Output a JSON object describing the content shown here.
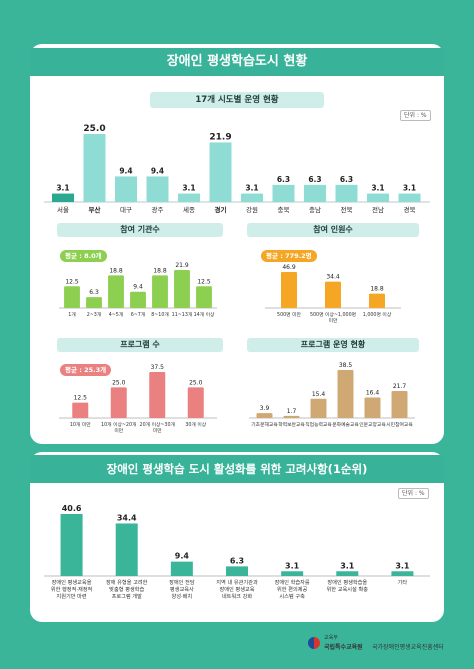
{
  "header": {
    "title": "장애인 평생학습도시 현황"
  },
  "unit_label": "단위 : %",
  "section1": {
    "title": "17개 시도별 운영 현황",
    "chart_data": {
      "type": "bar",
      "categories": [
        "서울",
        "부산",
        "대구",
        "광주",
        "세종",
        "경기",
        "강원",
        "충북",
        "충남",
        "전북",
        "전남",
        "경북"
      ],
      "values": [
        3.1,
        25.0,
        9.4,
        9.4,
        3.1,
        21.9,
        3.1,
        6.3,
        6.3,
        6.3,
        3.1,
        3.1
      ],
      "value_labels": [
        "3.1",
        "25.0",
        "9.4",
        "9.4",
        "3.1",
        "21.9",
        "3.1",
        "6.3",
        "6.3",
        "6.3",
        "3.1",
        "3.1"
      ],
      "highlight": [
        "부산",
        "경기"
      ],
      "colors": {
        "bar": "#8fdcd4",
        "highlight": "#8fdcd4",
        "first": "#2aa890"
      }
    }
  },
  "institutions": {
    "title": "참여 기관수",
    "avg_label": "평균 : 8.0개",
    "chart_data": {
      "type": "bar",
      "categories": [
        "1개",
        "2~3개",
        "4~5개",
        "6~7개",
        "8~10개",
        "11~13개",
        "14개 이상"
      ],
      "values": [
        12.5,
        6.3,
        18.8,
        9.4,
        18.8,
        21.9,
        12.5
      ],
      "value_labels": [
        "12.5",
        "6.3",
        "18.8",
        "9.4",
        "18.8",
        "21.9",
        "12.5"
      ],
      "colors": {
        "bar": "#8dcf50"
      }
    }
  },
  "participants": {
    "title": "참여 인원수",
    "avg_label": "평균 : 779.2명",
    "chart_data": {
      "type": "bar",
      "categories": [
        "500명 미만",
        "500명 이상~1,000명 미만",
        "1,000명 이상"
      ],
      "values": [
        46.9,
        34.4,
        18.8
      ],
      "value_labels": [
        "46.9",
        "34.4",
        "18.8"
      ],
      "colors": {
        "bar": "#f4a624"
      }
    }
  },
  "programs": {
    "title": "프로그램 수",
    "avg_label": "평균 : 25.3개",
    "chart_data": {
      "type": "bar",
      "categories": [
        "10개 미만",
        "10개 이상~20개 미만",
        "20개 이상~30개 미만",
        "30개 이상"
      ],
      "values": [
        12.5,
        25.0,
        37.5,
        25.0
      ],
      "value_labels": [
        "12.5",
        "25.0",
        "37.5",
        "25.0"
      ],
      "colors": {
        "bar": "#ea8080"
      }
    }
  },
  "program_status": {
    "title": "프로그램 운영 현황",
    "chart_data": {
      "type": "bar",
      "categories": [
        "기초문해교육",
        "학력보완교육",
        "직업능력교육",
        "문화예술교육",
        "인문교양교육",
        "시민참여교육"
      ],
      "values": [
        3.9,
        1.7,
        15.4,
        38.5,
        16.4,
        21.7
      ],
      "value_labels": [
        "3.9",
        "1.7",
        "15.4",
        "38.5",
        "16.4",
        "21.7"
      ],
      "colors": {
        "bar": "#cfa874"
      }
    }
  },
  "considerations": {
    "title": "장애인 평생학습 도시 활성화를 위한 고려사항(1순위)",
    "chart_data": {
      "type": "bar",
      "categories": [
        "장애인 평생교육을 위한 행정적·재정적 지원기반 마련",
        "장애 유형을 고려한 맞춤형 평생학습 프로그램 개발",
        "장애인 전담 평생교육사 양성·배치",
        "지역 내 유관기관과 장애인 평생교육 네트워크 강화",
        "장애인 학습자를 위한 편의제공 시스템 구축",
        "장애인 평생학습을 위한 교육시설 확충",
        "기타"
      ],
      "values": [
        40.6,
        34.4,
        9.4,
        6.3,
        3.1,
        3.1,
        3.1
      ],
      "value_labels": [
        "40.6",
        "34.4",
        "9.4",
        "6.3",
        "3.1",
        "3.1",
        "3.1"
      ],
      "colors": {
        "bar": "#3bb59a"
      }
    }
  },
  "footer": {
    "small": "교육부",
    "org1": "국립특수교육원",
    "org2": "국가장애인평생교육진흥센터"
  }
}
